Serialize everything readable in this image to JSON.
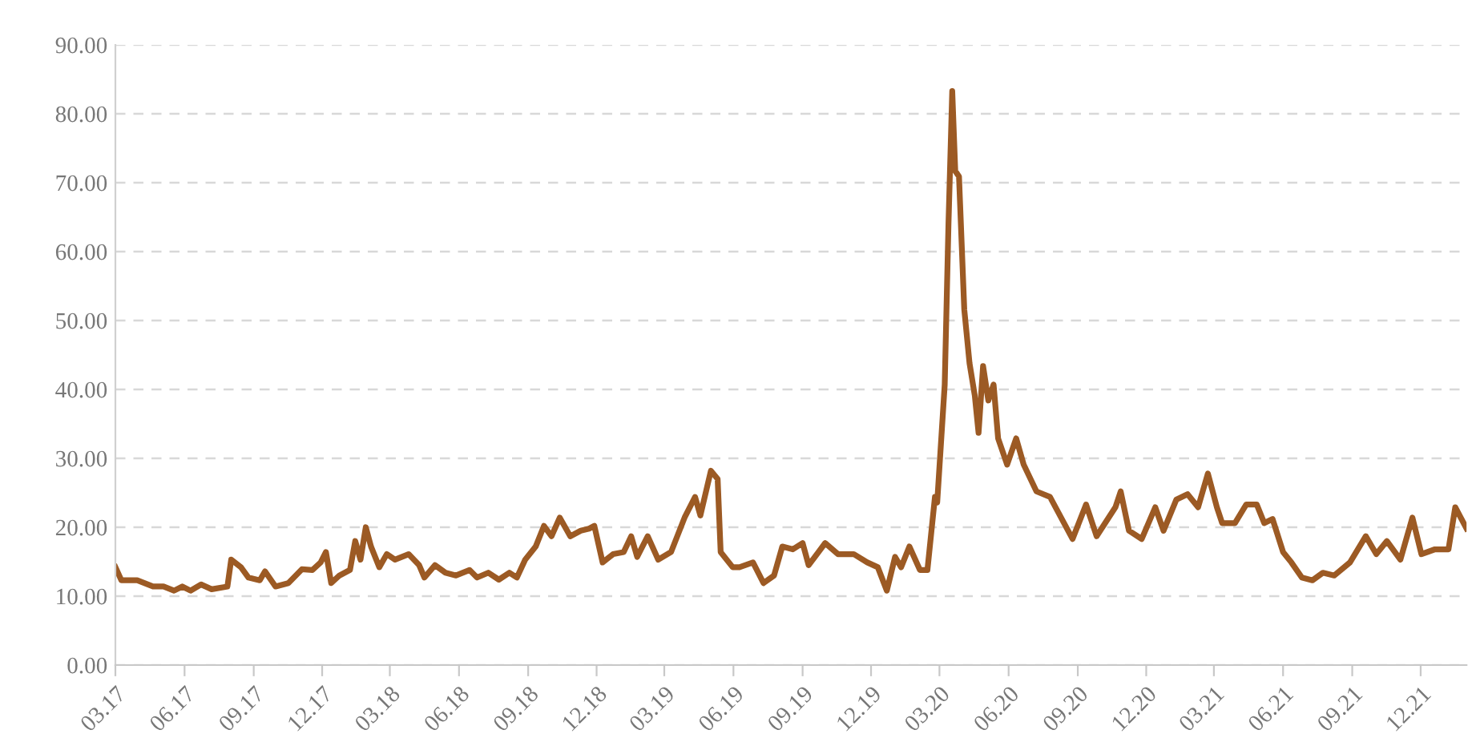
{
  "chart_data": {
    "type": "line",
    "color": "#9c5a24",
    "line_style": "solid",
    "marker": "none",
    "grid": "y",
    "x": [
      "2017-03-01",
      "2017-03-09",
      "2017-03-30",
      "2017-04-20",
      "2017-05-04",
      "2017-05-18",
      "2017-05-29",
      "2017-06-09",
      "2017-06-23",
      "2017-07-07",
      "2017-07-28",
      "2017-08-02",
      "2017-08-15",
      "2017-08-25",
      "2017-09-09",
      "2017-09-16",
      "2017-09-30",
      "2017-10-17",
      "2017-11-04",
      "2017-11-18",
      "2017-11-29",
      "2017-12-06",
      "2017-12-13",
      "2017-12-24",
      "2018-01-07",
      "2018-01-14",
      "2018-01-21",
      "2018-01-28",
      "2018-02-04",
      "2018-02-15",
      "2018-02-25",
      "2018-03-08",
      "2018-03-26",
      "2018-04-09",
      "2018-04-16",
      "2018-04-30",
      "2018-05-14",
      "2018-05-28",
      "2018-06-15",
      "2018-06-25",
      "2018-07-10",
      "2018-07-24",
      "2018-08-07",
      "2018-08-17",
      "2018-08-28",
      "2018-09-11",
      "2018-09-22",
      "2018-10-02",
      "2018-10-13",
      "2018-10-27",
      "2018-11-10",
      "2018-11-21",
      "2018-11-28",
      "2018-12-09",
      "2018-12-23",
      "2019-01-06",
      "2019-01-16",
      "2019-01-24",
      "2019-02-07",
      "2019-02-21",
      "2019-03-10",
      "2019-03-28",
      "2019-04-11",
      "2019-04-18",
      "2019-05-02",
      "2019-05-11",
      "2019-05-15",
      "2019-05-31",
      "2019-06-09",
      "2019-06-27",
      "2019-07-11",
      "2019-07-25",
      "2019-08-05",
      "2019-08-19",
      "2019-09-01",
      "2019-09-09",
      "2019-10-01",
      "2019-10-18",
      "2019-11-08",
      "2019-11-26",
      "2019-12-10",
      "2019-12-22",
      "2020-01-02",
      "2020-01-10",
      "2020-01-21",
      "2020-02-04",
      "2020-02-14",
      "2020-02-24",
      "2020-02-27",
      "2020-03-08",
      "2020-03-13",
      "2020-03-18",
      "2020-03-22",
      "2020-03-27",
      "2020-04-03",
      "2020-04-10",
      "2020-04-17",
      "2020-04-22",
      "2020-04-28",
      "2020-05-05",
      "2020-05-12",
      "2020-05-18",
      "2020-05-30",
      "2020-06-11",
      "2020-06-21",
      "2020-07-08",
      "2020-07-26",
      "2020-08-25",
      "2020-09-12",
      "2020-09-26",
      "2020-10-21",
      "2020-10-28",
      "2020-11-08",
      "2020-11-25",
      "2020-12-13",
      "2020-12-24",
      "2021-01-10",
      "2021-01-25",
      "2021-02-08",
      "2021-02-21",
      "2021-03-05",
      "2021-03-12",
      "2021-03-29",
      "2021-04-13",
      "2021-04-27",
      "2021-05-07",
      "2021-05-18",
      "2021-06-01",
      "2021-06-12",
      "2021-06-26",
      "2021-07-10",
      "2021-07-24",
      "2021-08-08",
      "2021-08-29",
      "2021-09-19",
      "2021-10-03",
      "2021-10-17",
      "2021-11-04",
      "2021-11-20",
      "2021-12-02",
      "2021-12-20",
      "2022-01-07",
      "2022-01-16",
      "2022-01-31"
    ],
    "values": [
      14.2,
      12.3,
      12.3,
      11.4,
      11.4,
      10.8,
      11.4,
      10.8,
      11.7,
      11.0,
      11.4,
      15.3,
      14.2,
      12.7,
      12.3,
      13.6,
      11.4,
      11.9,
      13.9,
      13.8,
      14.9,
      16.4,
      11.9,
      13.0,
      13.8,
      18.0,
      15.3,
      20.0,
      17.2,
      14.2,
      16.1,
      15.3,
      16.1,
      14.5,
      12.7,
      14.5,
      13.4,
      13.0,
      13.8,
      12.7,
      13.4,
      12.4,
      13.4,
      12.7,
      15.3,
      17.2,
      20.2,
      18.7,
      21.4,
      18.7,
      19.5,
      19.8,
      20.2,
      14.9,
      16.1,
      16.4,
      18.7,
      15.7,
      18.7,
      15.3,
      16.4,
      21.4,
      24.4,
      21.7,
      28.2,
      27.0,
      16.4,
      14.2,
      14.2,
      14.9,
      11.9,
      13.0,
      17.2,
      16.8,
      17.7,
      14.5,
      17.7,
      16.1,
      16.1,
      14.9,
      14.2,
      10.8,
      15.7,
      14.2,
      17.2,
      13.8,
      13.8,
      24.4,
      23.6,
      40.7,
      64.0,
      83.3,
      71.7,
      70.9,
      51.6,
      43.8,
      39.1,
      33.7,
      43.4,
      38.4,
      40.7,
      32.9,
      29.1,
      32.9,
      29.1,
      25.2,
      24.4,
      18.3,
      23.3,
      18.7,
      22.9,
      25.2,
      19.5,
      18.3,
      22.9,
      19.5,
      24.0,
      24.8,
      22.9,
      27.8,
      22.9,
      20.6,
      20.6,
      23.3,
      23.3,
      20.6,
      21.2,
      16.4,
      14.9,
      12.7,
      12.3,
      13.4,
      13.0,
      14.9,
      18.7,
      16.1,
      18.0,
      15.3,
      21.4,
      16.1,
      16.8,
      16.8,
      22.9,
      19.8
    ],
    "xlim": [
      "2017-03-01",
      "2022-01-31"
    ],
    "xticks": [
      {
        "value": "2017-03-01",
        "label": "03.17"
      },
      {
        "value": "2017-06-01",
        "label": "06.17"
      },
      {
        "value": "2017-09-01",
        "label": "09.17"
      },
      {
        "value": "2017-12-01",
        "label": "12.17"
      },
      {
        "value": "2018-03-01",
        "label": "03.18"
      },
      {
        "value": "2018-06-01",
        "label": "06.18"
      },
      {
        "value": "2018-09-01",
        "label": "09.18"
      },
      {
        "value": "2018-12-01",
        "label": "12.18"
      },
      {
        "value": "2019-03-01",
        "label": "03.19"
      },
      {
        "value": "2019-06-01",
        "label": "06.19"
      },
      {
        "value": "2019-09-01",
        "label": "09.19"
      },
      {
        "value": "2019-12-01",
        "label": "12.19"
      },
      {
        "value": "2020-03-01",
        "label": "03.20"
      },
      {
        "value": "2020-06-01",
        "label": "06.20"
      },
      {
        "value": "2020-09-01",
        "label": "09.20"
      },
      {
        "value": "2020-12-01",
        "label": "12.20"
      },
      {
        "value": "2021-03-01",
        "label": "03.21"
      },
      {
        "value": "2021-06-01",
        "label": "06.21"
      },
      {
        "value": "2021-09-01",
        "label": "09.21"
      },
      {
        "value": "2021-12-01",
        "label": "12.21"
      }
    ],
    "ylim": [
      0,
      90
    ],
    "yticks": [
      {
        "value": 0,
        "label": "0.00"
      },
      {
        "value": 10,
        "label": "10.00"
      },
      {
        "value": 20,
        "label": "20.00"
      },
      {
        "value": 30,
        "label": "30.00"
      },
      {
        "value": 40,
        "label": "40.00"
      },
      {
        "value": 50,
        "label": "50.00"
      },
      {
        "value": 60,
        "label": "60.00"
      },
      {
        "value": 70,
        "label": "70.00"
      },
      {
        "value": 80,
        "label": "80.00"
      },
      {
        "value": 90,
        "label": "90.00"
      }
    ]
  }
}
